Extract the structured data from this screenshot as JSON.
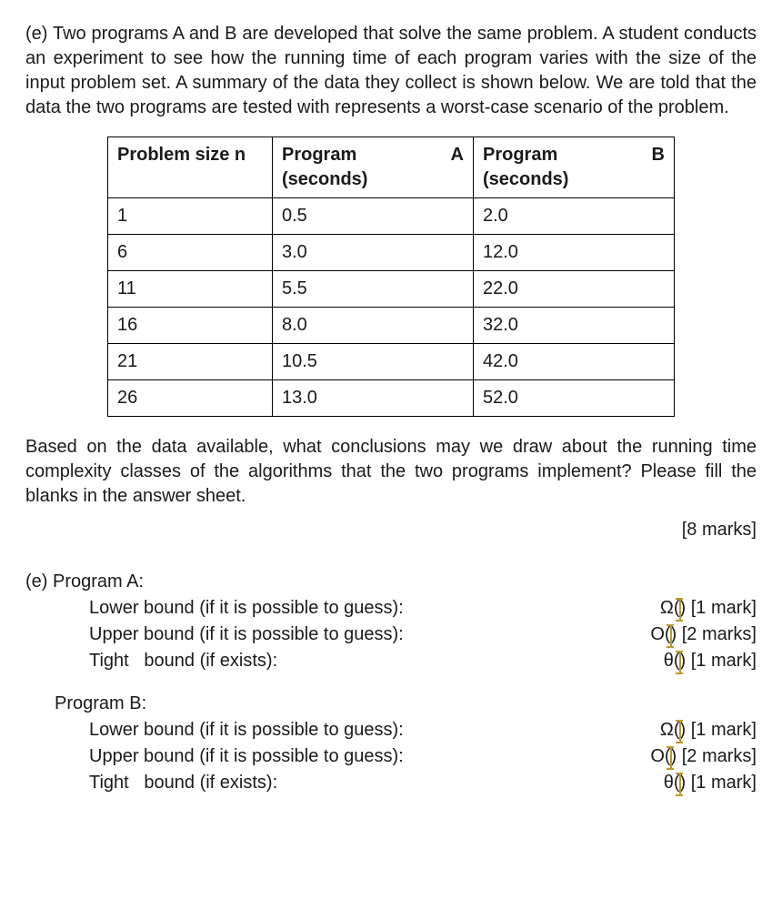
{
  "intro": "(e) Two programs A and B are developed that solve the same problem. A student conducts an experiment to see how the running time of each program varies with the size of the input problem set. A summary of the data they collect is shown below. We are told that the data the two programs are tested with represents a worst-case scenario of the problem.",
  "table": {
    "headers": {
      "n": "Problem size n",
      "a_main": "Program",
      "a_letter": "A",
      "a_sub": "(seconds)",
      "b_main": "Program",
      "b_letter": "B",
      "b_sub": "(seconds)"
    },
    "rows": [
      {
        "n": "1",
        "a": "0.5",
        "b": "2.0"
      },
      {
        "n": "6",
        "a": "3.0",
        "b": "12.0"
      },
      {
        "n": "11",
        "a": "5.5",
        "b": "22.0"
      },
      {
        "n": "16",
        "a": "8.0",
        "b": "32.0"
      },
      {
        "n": "21",
        "a": "10.5",
        "b": "42.0"
      },
      {
        "n": "26",
        "a": "13.0",
        "b": "52.0"
      }
    ]
  },
  "instructions": "Based on the data available, what conclusions may we draw about the running time complexity classes of the algorithms that the two programs implement? Please fill the blanks in the answer sheet.",
  "marks_total": "[8 marks]",
  "answers": {
    "section_prefix": "(e) ",
    "programs": [
      {
        "title": "Program A:",
        "lines": [
          {
            "label": "Lower bound (if it is possible to guess):",
            "symbol": "Ω()",
            "marks": "[1 mark]"
          },
          {
            "label": "Upper bound (if it is possible to guess):",
            "symbol": "O()",
            "marks": "[2 marks]"
          },
          {
            "label": "Tight   bound (if exists):",
            "symbol": "θ()",
            "marks": "[1 mark]"
          }
        ]
      },
      {
        "title": "Program B:",
        "lines": [
          {
            "label": "Lower bound (if it is possible to guess):",
            "symbol": "Ω()",
            "marks": "[1 mark]"
          },
          {
            "label": "Upper bound (if it is possible to guess):",
            "symbol": "O()",
            "marks": "[2 marks]"
          },
          {
            "label": "Tight   bound (if exists):",
            "symbol": "θ()",
            "marks": "[1 mark]"
          }
        ]
      }
    ]
  },
  "style": {
    "font_family": "Arial",
    "body_fontsize_pt": 15,
    "text_color": "#1a1a1a",
    "background_color": "#ffffff",
    "table_border_color": "#000000",
    "cursor_color": "#b89a30"
  }
}
